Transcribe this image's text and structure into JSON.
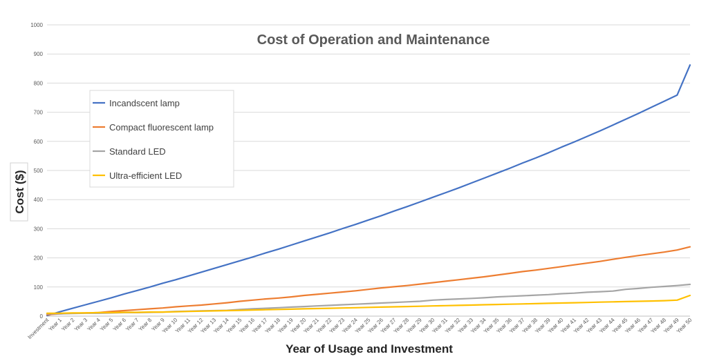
{
  "chart_data": {
    "type": "line",
    "title": "Cost of Operation and Maintenance",
    "xlabel": "Year of Usage and Investment",
    "ylabel": "Cost ($)",
    "ylim": [
      0,
      1000
    ],
    "yticks": [
      0,
      100,
      200,
      300,
      400,
      500,
      600,
      700,
      800,
      900,
      1000
    ],
    "grid": true,
    "legend_position": "top-left",
    "categories": [
      "Investment",
      "Year 1",
      "Year 2",
      "Year 3",
      "Year 4",
      "Year 5",
      "Year 6",
      "Year 7",
      "Year 8",
      "Year 9",
      "Year 10",
      "Year 11",
      "Year 12",
      "Year 13",
      "Year 14",
      "Year 15",
      "Year 16",
      "Year 17",
      "Year 18",
      "Year 19",
      "Year 20",
      "Year 21",
      "Year 22",
      "Year 23",
      "Year 24",
      "Year 25",
      "Year 26",
      "Year 27",
      "Year 28",
      "Year 29",
      "Year 30",
      "Year 31",
      "Year 32",
      "Year 33",
      "Year 34",
      "Year 35",
      "Year 36",
      "Year 37",
      "Year 38",
      "Year 39",
      "Year 40",
      "Year 41",
      "Year 42",
      "Year 43",
      "Year 44",
      "Year 45",
      "Year 46",
      "Year 47",
      "Year 48",
      "Year 49",
      "Year 50"
    ],
    "series": [
      {
        "name": "Incandscent lamp",
        "color": "#4472C4",
        "values": [
          2,
          15,
          27,
          39,
          51,
          63,
          76,
          88,
          100,
          113,
          125,
          138,
          151,
          164,
          177,
          190,
          203,
          217,
          230,
          244,
          258,
          272,
          286,
          301,
          315,
          330,
          345,
          361,
          376,
          392,
          408,
          424,
          440,
          457,
          474,
          491,
          508,
          526,
          543,
          561,
          580,
          598,
          617,
          636,
          656,
          676,
          696,
          717,
          738,
          759,
          862
        ]
      },
      {
        "name": "Compact fluorescent lamp",
        "color": "#ED7D31",
        "values": [
          5,
          8,
          10,
          11,
          12,
          16,
          19,
          22,
          25,
          28,
          32,
          35,
          38,
          42,
          46,
          51,
          55,
          59,
          62,
          66,
          71,
          75,
          79,
          83,
          87,
          92,
          97,
          101,
          105,
          110,
          115,
          120,
          125,
          130,
          135,
          141,
          147,
          153,
          158,
          164,
          170,
          176,
          182,
          188,
          195,
          202,
          208,
          214,
          220,
          227,
          238
        ]
      },
      {
        "name": "Standard LED",
        "color": "#A5A5A5",
        "values": [
          8,
          8,
          9,
          10,
          10,
          11,
          12,
          12,
          13,
          14,
          16,
          17,
          18,
          19,
          20,
          23,
          25,
          27,
          29,
          31,
          33,
          35,
          37,
          39,
          41,
          43,
          45,
          47,
          49,
          51,
          55,
          57,
          59,
          61,
          63,
          66,
          68,
          70,
          72,
          74,
          77,
          79,
          82,
          84,
          86,
          92,
          95,
          99,
          102,
          105,
          109
        ]
      },
      {
        "name": "Ultra-efficient LED",
        "color": "#FFC000",
        "values": [
          10,
          10,
          11,
          11,
          12,
          12,
          13,
          13,
          14,
          14,
          15,
          16,
          17,
          18,
          19,
          20,
          21,
          22,
          23,
          24,
          25,
          26,
          27,
          28,
          29,
          30,
          31,
          32,
          33,
          34,
          35,
          36,
          37,
          38,
          39,
          40,
          41,
          42,
          43,
          44,
          45,
          46,
          47,
          48,
          49,
          50,
          51,
          52,
          53,
          55,
          71
        ]
      }
    ]
  }
}
